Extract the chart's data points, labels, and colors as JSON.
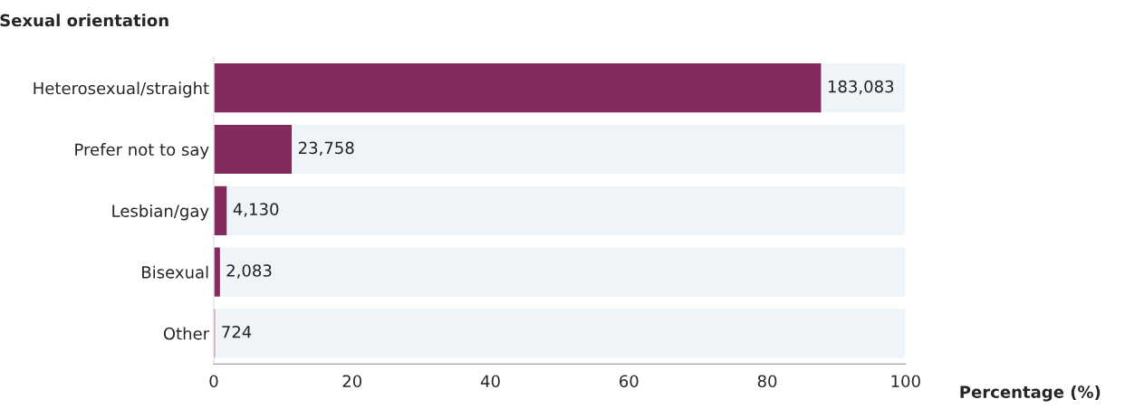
{
  "chart_data": {
    "type": "bar",
    "orientation": "horizontal",
    "stacked": true,
    "ylabel": "Sexual orientation",
    "xlabel": "Percentage (%)",
    "categories": [
      "Heterosexual/straight",
      "Prefer not to say",
      "Lesbian/gay",
      "Bisexual",
      "Other"
    ],
    "series": [
      {
        "color": "#852a5f",
        "values": [
          87.9,
          11.4,
          2.0,
          1.0,
          0.3
        ]
      },
      {
        "color": "#eef4f8",
        "values": [
          12.1,
          88.6,
          98.0,
          99.0,
          99.7
        ]
      }
    ],
    "annotations": [
      {
        "text": "183,083",
        "x": 87.9,
        "y": "Heterosexual/straight"
      },
      {
        "text": "23,758",
        "x": 11.4,
        "y": "Prefer not to say"
      },
      {
        "text": "4,130",
        "x": 2.0,
        "y": "Lesbian/gay"
      },
      {
        "text": "2,083",
        "x": 1.0,
        "y": "Bisexual"
      },
      {
        "text": "724",
        "x": 0.3,
        "y": "Other"
      }
    ],
    "xlim": [
      0,
      100
    ],
    "xticks": [
      0,
      20,
      40,
      60,
      80,
      100
    ],
    "grid": false,
    "legend": false
  }
}
